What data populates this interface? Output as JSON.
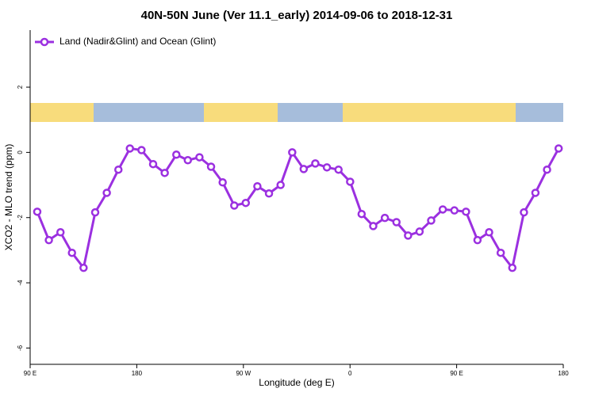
{
  "chart_data": {
    "type": "line",
    "title": "40N-50N June (Ver 11.1_early)   2014-09-06 to 2018-12-31",
    "x_label": "Longitude (deg E)",
    "y_label": "XCO2 - MLO trend (ppm)",
    "legend": "top-left",
    "xlim": [
      -270,
      180
    ],
    "xticks": [
      {
        "value": -270,
        "label": "90 E"
      },
      {
        "value": -180,
        "label": "180"
      },
      {
        "value": -90,
        "label": "90 W"
      },
      0,
      {
        "value": 90,
        "label": "90 E"
      },
      180
    ],
    "ylim": [
      -6.5,
      3.75
    ],
    "yticks": [
      -6,
      -4,
      -2,
      0,
      2
    ],
    "x": [
      -264,
      -254.2,
      -244.4,
      -234.7,
      -224.9,
      -215.1,
      -205.3,
      -195.5,
      -185.8,
      -176,
      -166.2,
      -156.4,
      -146.6,
      -136.9,
      -127.1,
      -117.3,
      -107.5,
      -97.7,
      -88,
      -78.2,
      -68.4,
      -58.6,
      -48.8,
      -39.1,
      -29.3,
      -19.5,
      -9.7,
      0.1,
      9.8,
      19.6,
      29.4,
      39.2,
      49,
      58.7,
      68.5,
      78.3,
      88.1,
      97.9,
      107.6,
      117.4,
      127.2,
      137,
      146.8,
      156.5,
      166.3,
      176.1
    ],
    "series": [
      {
        "name": "Land (Nadir&Glint) and Ocean (Glint)",
        "color": "#9b30e0",
        "values": [
          -1.82,
          -2.69,
          -2.45,
          -3.08,
          -3.54,
          -1.84,
          -1.24,
          -0.53,
          0.12,
          0.07,
          -0.36,
          -0.63,
          -0.07,
          -0.24,
          -0.15,
          -0.44,
          -0.92,
          -1.63,
          -1.55,
          -1.04,
          -1.26,
          -1.0,
          0.0,
          -0.51,
          -0.34,
          -0.46,
          -0.53,
          -0.9,
          -1.89,
          -2.26,
          -2.01,
          -2.14,
          -2.55,
          -2.43,
          -2.09,
          -1.75,
          -1.78,
          -1.82,
          -2.69,
          -2.45,
          -3.08,
          -3.54,
          -1.84,
          -1.24,
          -0.53,
          0.12
        ]
      }
    ]
  }
}
